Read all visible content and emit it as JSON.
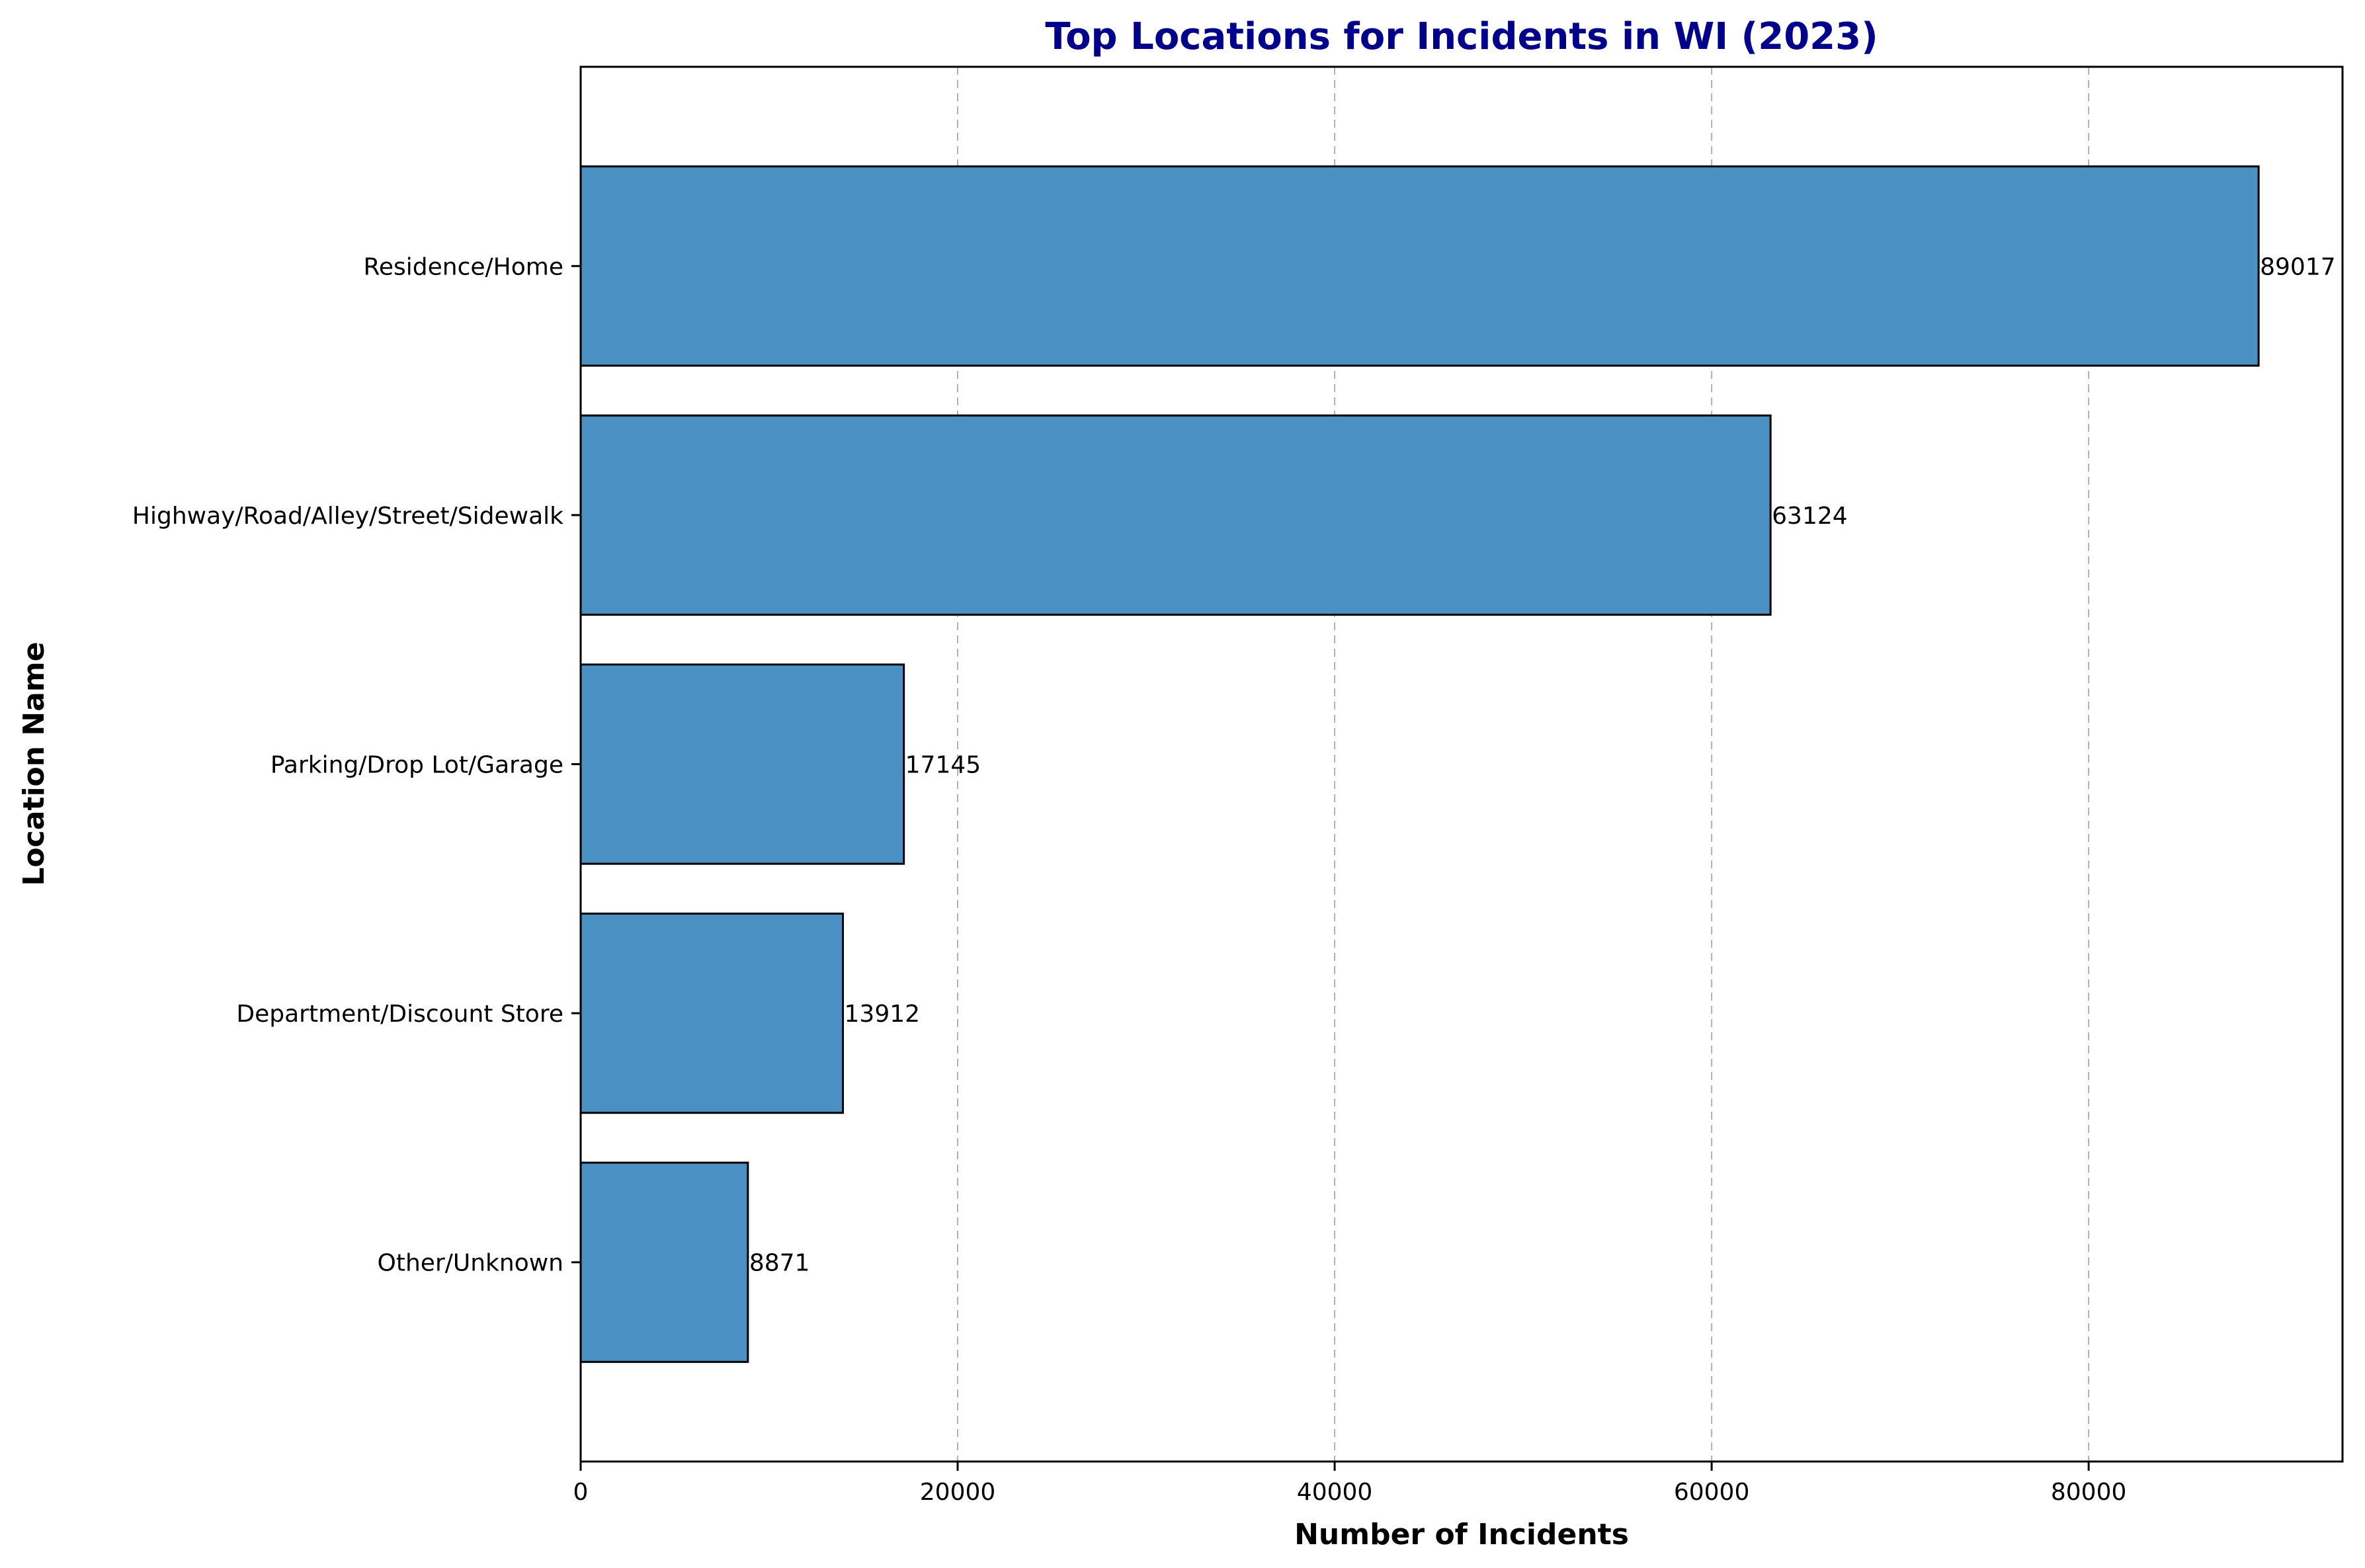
{
  "chart_data": {
    "type": "bar",
    "orientation": "horizontal",
    "title": "Top Locations for Incidents in WI (2023)",
    "title_color": "#00008b",
    "xlabel": "Number of Incidents",
    "ylabel": "Location Name",
    "categories": [
      "Residence/Home",
      "Highway/Road/Alley/Street/Sidewalk",
      "Parking/Drop Lot/Garage",
      "Department/Discount Store",
      "Other/Unknown"
    ],
    "values": [
      89017,
      63124,
      17145,
      13912,
      8871
    ],
    "data_labels": [
      "89017",
      "63124",
      "17145",
      "13912",
      "8871"
    ],
    "xlim": [
      0,
      93468
    ],
    "x_ticks": [
      0,
      20000,
      40000,
      60000,
      80000
    ],
    "x_tick_labels": [
      "0",
      "20000",
      "40000",
      "60000",
      "80000"
    ],
    "grid": "x-axis dashed",
    "bar_color": "#4a90c2",
    "bar_edge_color": "#000000"
  }
}
